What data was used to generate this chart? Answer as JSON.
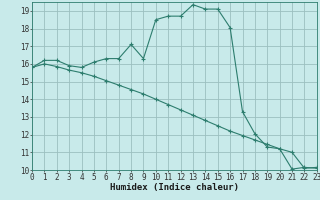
{
  "xlabel": "Humidex (Indice chaleur)",
  "bg_color": "#c8eaea",
  "grid_color": "#9bbfbf",
  "line_color": "#2d7d6e",
  "line1_x": [
    0,
    1,
    2,
    3,
    4,
    5,
    6,
    7,
    8,
    9,
    10,
    11,
    12,
    13,
    14,
    15,
    16,
    17,
    18,
    19,
    20,
    21,
    22,
    23
  ],
  "line1_y": [
    15.8,
    16.2,
    16.2,
    15.9,
    15.8,
    16.1,
    16.3,
    16.3,
    17.1,
    16.3,
    18.5,
    18.7,
    18.7,
    19.35,
    19.1,
    19.1,
    18.05,
    13.3,
    12.05,
    11.3,
    11.2,
    10.05,
    10.15,
    10.1
  ],
  "line2_x": [
    0,
    1,
    2,
    3,
    4,
    5,
    6,
    7,
    8,
    9,
    10,
    11,
    12,
    13,
    14,
    15,
    16,
    17,
    18,
    19,
    20,
    21,
    22,
    23
  ],
  "line2_y": [
    15.8,
    16.0,
    15.85,
    15.65,
    15.5,
    15.3,
    15.05,
    14.8,
    14.55,
    14.3,
    14.0,
    13.7,
    13.4,
    13.1,
    12.8,
    12.5,
    12.2,
    11.95,
    11.7,
    11.45,
    11.2,
    11.0,
    10.1,
    10.15
  ],
  "xlim": [
    0,
    23
  ],
  "ylim": [
    10,
    19.5
  ],
  "xtick_labels": [
    "0",
    "1",
    "2",
    "3",
    "4",
    "5",
    "6",
    "7",
    "8",
    "9",
    "10",
    "11",
    "12",
    "13",
    "14",
    "15",
    "16",
    "17",
    "18",
    "19",
    "20",
    "21",
    "22",
    "23"
  ],
  "yticks": [
    10,
    11,
    12,
    13,
    14,
    15,
    16,
    17,
    18,
    19
  ],
  "xlabel_fontsize": 6.5,
  "tick_fontsize": 5.5
}
